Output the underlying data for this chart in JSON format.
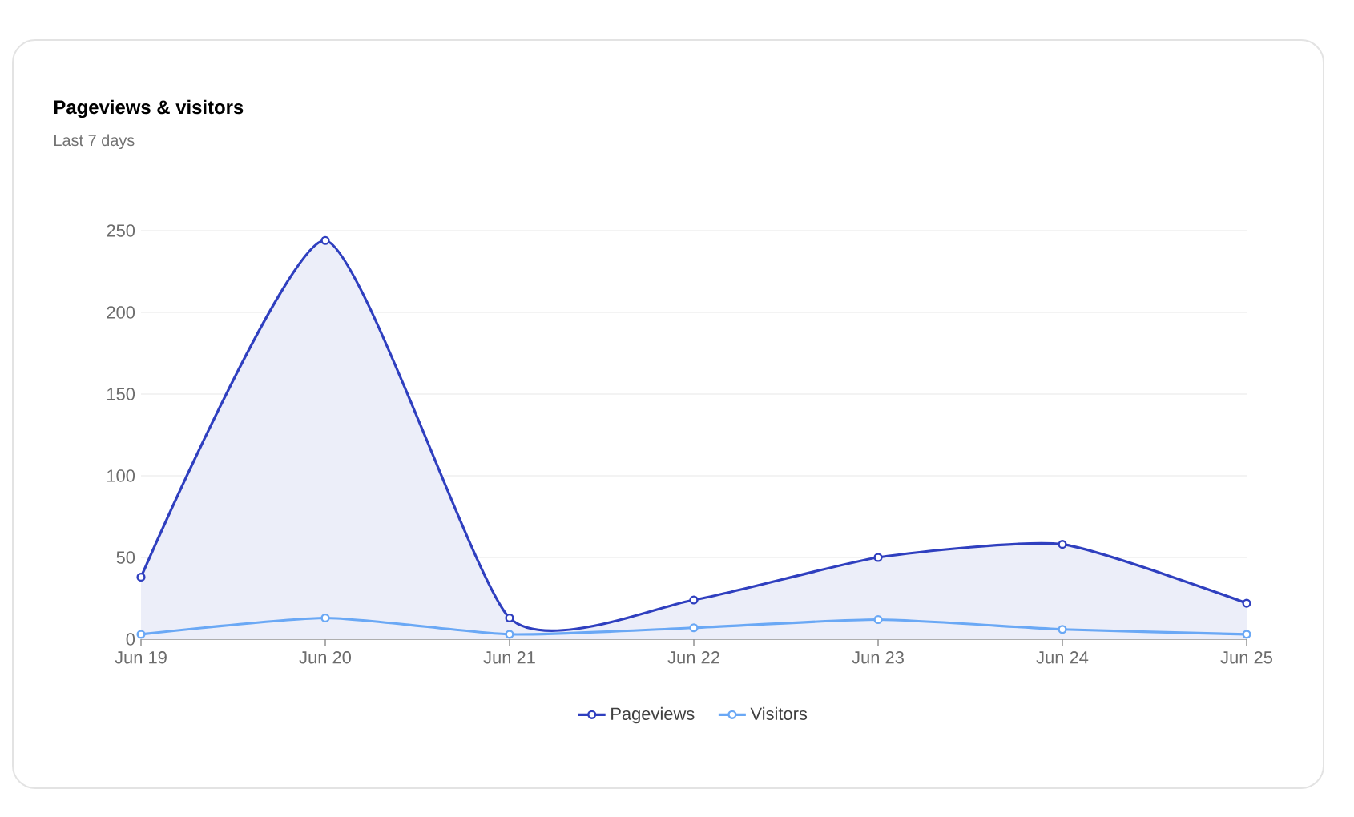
{
  "chart_data": {
    "type": "line",
    "title": "Pageviews & visitors",
    "subtitle": "Last 7 days",
    "categories": [
      "Jun 19",
      "Jun 20",
      "Jun 21",
      "Jun 22",
      "Jun 23",
      "Jun 24",
      "Jun 25"
    ],
    "series": [
      {
        "name": "Pageviews",
        "type": "area",
        "color": "#2f3fbf",
        "values": [
          38,
          244,
          13,
          24,
          50,
          58,
          22
        ]
      },
      {
        "name": "Visitors",
        "type": "line",
        "color": "#6aa8f5",
        "values": [
          3,
          13,
          3,
          7,
          12,
          6,
          3
        ]
      }
    ],
    "ylim": [
      0,
      250
    ],
    "yticks": [
      0,
      50,
      100,
      150,
      200,
      250
    ],
    "grid": "y",
    "legend": "bottom",
    "marker": "circle"
  }
}
